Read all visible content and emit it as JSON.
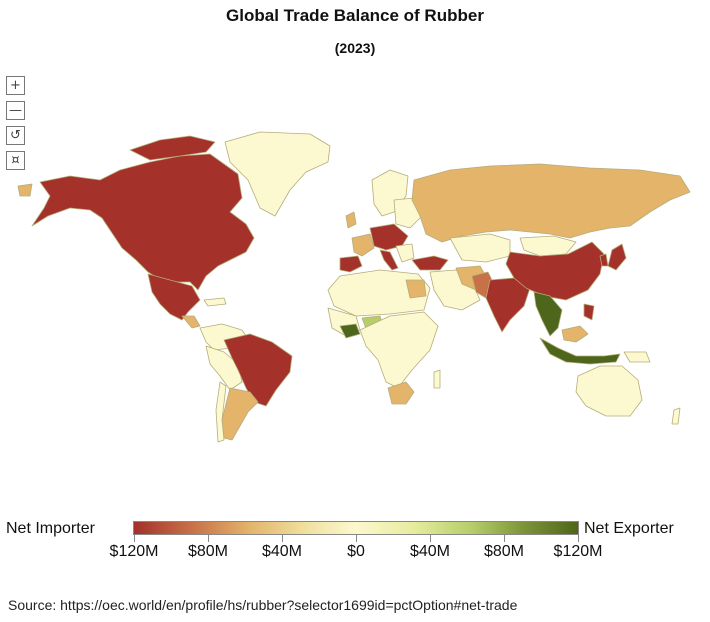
{
  "title": "Global Trade Balance of Rubber",
  "subtitle": "(2023)",
  "controls": {
    "zoom_in": "+",
    "zoom_out": "—",
    "reset": "↺",
    "fullscreen": "¤"
  },
  "legend": {
    "left_label": "Net Importer",
    "right_label": "Net Exporter",
    "ticks": [
      "$120M",
      "$80M",
      "$40M",
      "$0",
      "$40M",
      "$80M",
      "$120M"
    ]
  },
  "colors": {
    "importer_strong": "#a4312a",
    "importer_mid": "#e3b46a",
    "neutral": "#fcf8cf",
    "exporter_mid": "#b6cd6a",
    "exporter_strong": "#4e651c",
    "border": "#b5ad7a"
  },
  "source": "Source: https://oec.world/en/profile/hs/rubber?selector1699id=pctOption#net-trade"
}
